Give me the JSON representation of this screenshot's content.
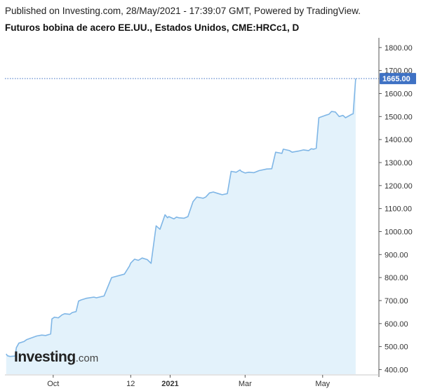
{
  "header": {
    "published": "Published on Investing.com, 28/May/2021 - 17:39:07 GMT, Powered by TradingView.",
    "title": "Futuros bobina de acero EE.UU., Estados Unidos, CME:HRCc1, D"
  },
  "logo": {
    "main": "Investing",
    "suffix": ".com"
  },
  "colors": {
    "line": "#7fb6e6",
    "area": "#e3f2fb",
    "last_price_bg": "#3f72c4",
    "last_price_line": "#3f72c4",
    "axis": "#555555"
  },
  "chart_data": {
    "type": "area",
    "title": "Futuros bobina de acero EE.UU., Estados Unidos, CME:HRCc1, D",
    "ylim": [
      380,
      1830
    ],
    "y_ticks": [
      {
        "value": 400,
        "label": "400.00"
      },
      {
        "value": 500,
        "label": "500.00"
      },
      {
        "value": 600,
        "label": "600.00"
      },
      {
        "value": 700,
        "label": "700.00"
      },
      {
        "value": 800,
        "label": "800.00"
      },
      {
        "value": 900,
        "label": "900.00"
      },
      {
        "value": 1000,
        "label": "1000.00"
      },
      {
        "value": 1100,
        "label": "1100.00"
      },
      {
        "value": 1200,
        "label": "1200.00"
      },
      {
        "value": 1300,
        "label": "1300.00"
      },
      {
        "value": 1400,
        "label": "1400.00"
      },
      {
        "value": 1500,
        "label": "1500.00"
      },
      {
        "value": 1600,
        "label": "1600.00"
      },
      {
        "value": 1700,
        "label": "1700.00"
      },
      {
        "value": 1800,
        "label": "1800.00"
      }
    ],
    "x_ticks": [
      {
        "date": "2020-10-01",
        "label": "Oct",
        "bold": false
      },
      {
        "date": "2020-12-01",
        "label": "12",
        "bold": false
      },
      {
        "date": "2021-01-01",
        "label": "2021",
        "bold": true
      },
      {
        "date": "2021-03-01",
        "label": "Mar",
        "bold": false
      },
      {
        "date": "2021-05-01",
        "label": "May",
        "bold": false
      }
    ],
    "xlim": [
      "2020-08-24",
      "2021-06-06"
    ],
    "last_price": {
      "value": 1665,
      "label": "1665.00"
    },
    "series": [
      {
        "x": [
          "2020-08-25",
          "2020-08-26",
          "2020-08-28",
          "2020-09-01",
          "2020-09-02",
          "2020-09-04",
          "2020-09-08",
          "2020-09-10",
          "2020-09-14",
          "2020-09-18",
          "2020-09-22",
          "2020-09-25",
          "2020-09-29",
          "2020-09-30",
          "2020-10-02",
          "2020-10-05",
          "2020-10-08",
          "2020-10-10",
          "2020-10-14",
          "2020-10-16",
          "2020-10-19",
          "2020-10-21",
          "2020-10-23",
          "2020-10-27",
          "2020-11-02",
          "2020-11-04",
          "2020-11-10",
          "2020-11-16",
          "2020-11-24",
          "2020-11-26",
          "2020-11-30",
          "2020-12-01",
          "2020-12-04",
          "2020-12-07",
          "2020-12-10",
          "2020-12-14",
          "2020-12-17",
          "2020-12-21",
          "2020-12-24",
          "2020-12-28",
          "2020-12-30",
          "2020-12-31",
          "2021-01-04",
          "2021-01-06",
          "2021-01-08",
          "2021-01-12",
          "2021-01-15",
          "2021-01-19",
          "2021-01-22",
          "2021-01-27",
          "2021-01-29",
          "2021-02-01",
          "2021-02-04",
          "2021-02-08",
          "2021-02-11",
          "2021-02-15",
          "2021-02-18",
          "2021-02-22",
          "2021-02-25",
          "2021-02-26",
          "2021-03-01",
          "2021-03-04",
          "2021-03-08",
          "2021-03-12",
          "2021-03-18",
          "2021-03-22",
          "2021-03-25",
          "2021-03-30",
          "2021-03-31",
          "2021-04-05",
          "2021-04-07",
          "2021-04-12",
          "2021-04-16",
          "2021-04-20",
          "2021-04-22",
          "2021-04-24",
          "2021-04-26",
          "2021-04-28",
          "2021-05-03",
          "2021-05-06",
          "2021-05-08",
          "2021-05-11",
          "2021-05-14",
          "2021-05-17",
          "2021-05-19",
          "2021-05-24",
          "2021-05-25",
          "2021-05-27"
        ],
        "y": [
          468,
          460,
          457,
          459,
          495,
          515,
          522,
          530,
          538,
          546,
          550,
          548,
          555,
          620,
          628,
          625,
          638,
          643,
          640,
          648,
          652,
          698,
          703,
          710,
          715,
          712,
          720,
          800,
          812,
          815,
          850,
          863,
          880,
          875,
          885,
          878,
          862,
          1025,
          1010,
          1073,
          1060,
          1065,
          1055,
          1063,
          1060,
          1058,
          1065,
          1130,
          1150,
          1145,
          1150,
          1168,
          1172,
          1165,
          1160,
          1165,
          1262,
          1258,
          1268,
          1262,
          1255,
          1258,
          1256,
          1265,
          1272,
          1273,
          1345,
          1340,
          1358,
          1352,
          1345,
          1350,
          1355,
          1352,
          1360,
          1358,
          1362,
          1495,
          1505,
          1510,
          1522,
          1520,
          1500,
          1505,
          1495,
          1510,
          1512,
          1665
        ]
      }
    ]
  }
}
